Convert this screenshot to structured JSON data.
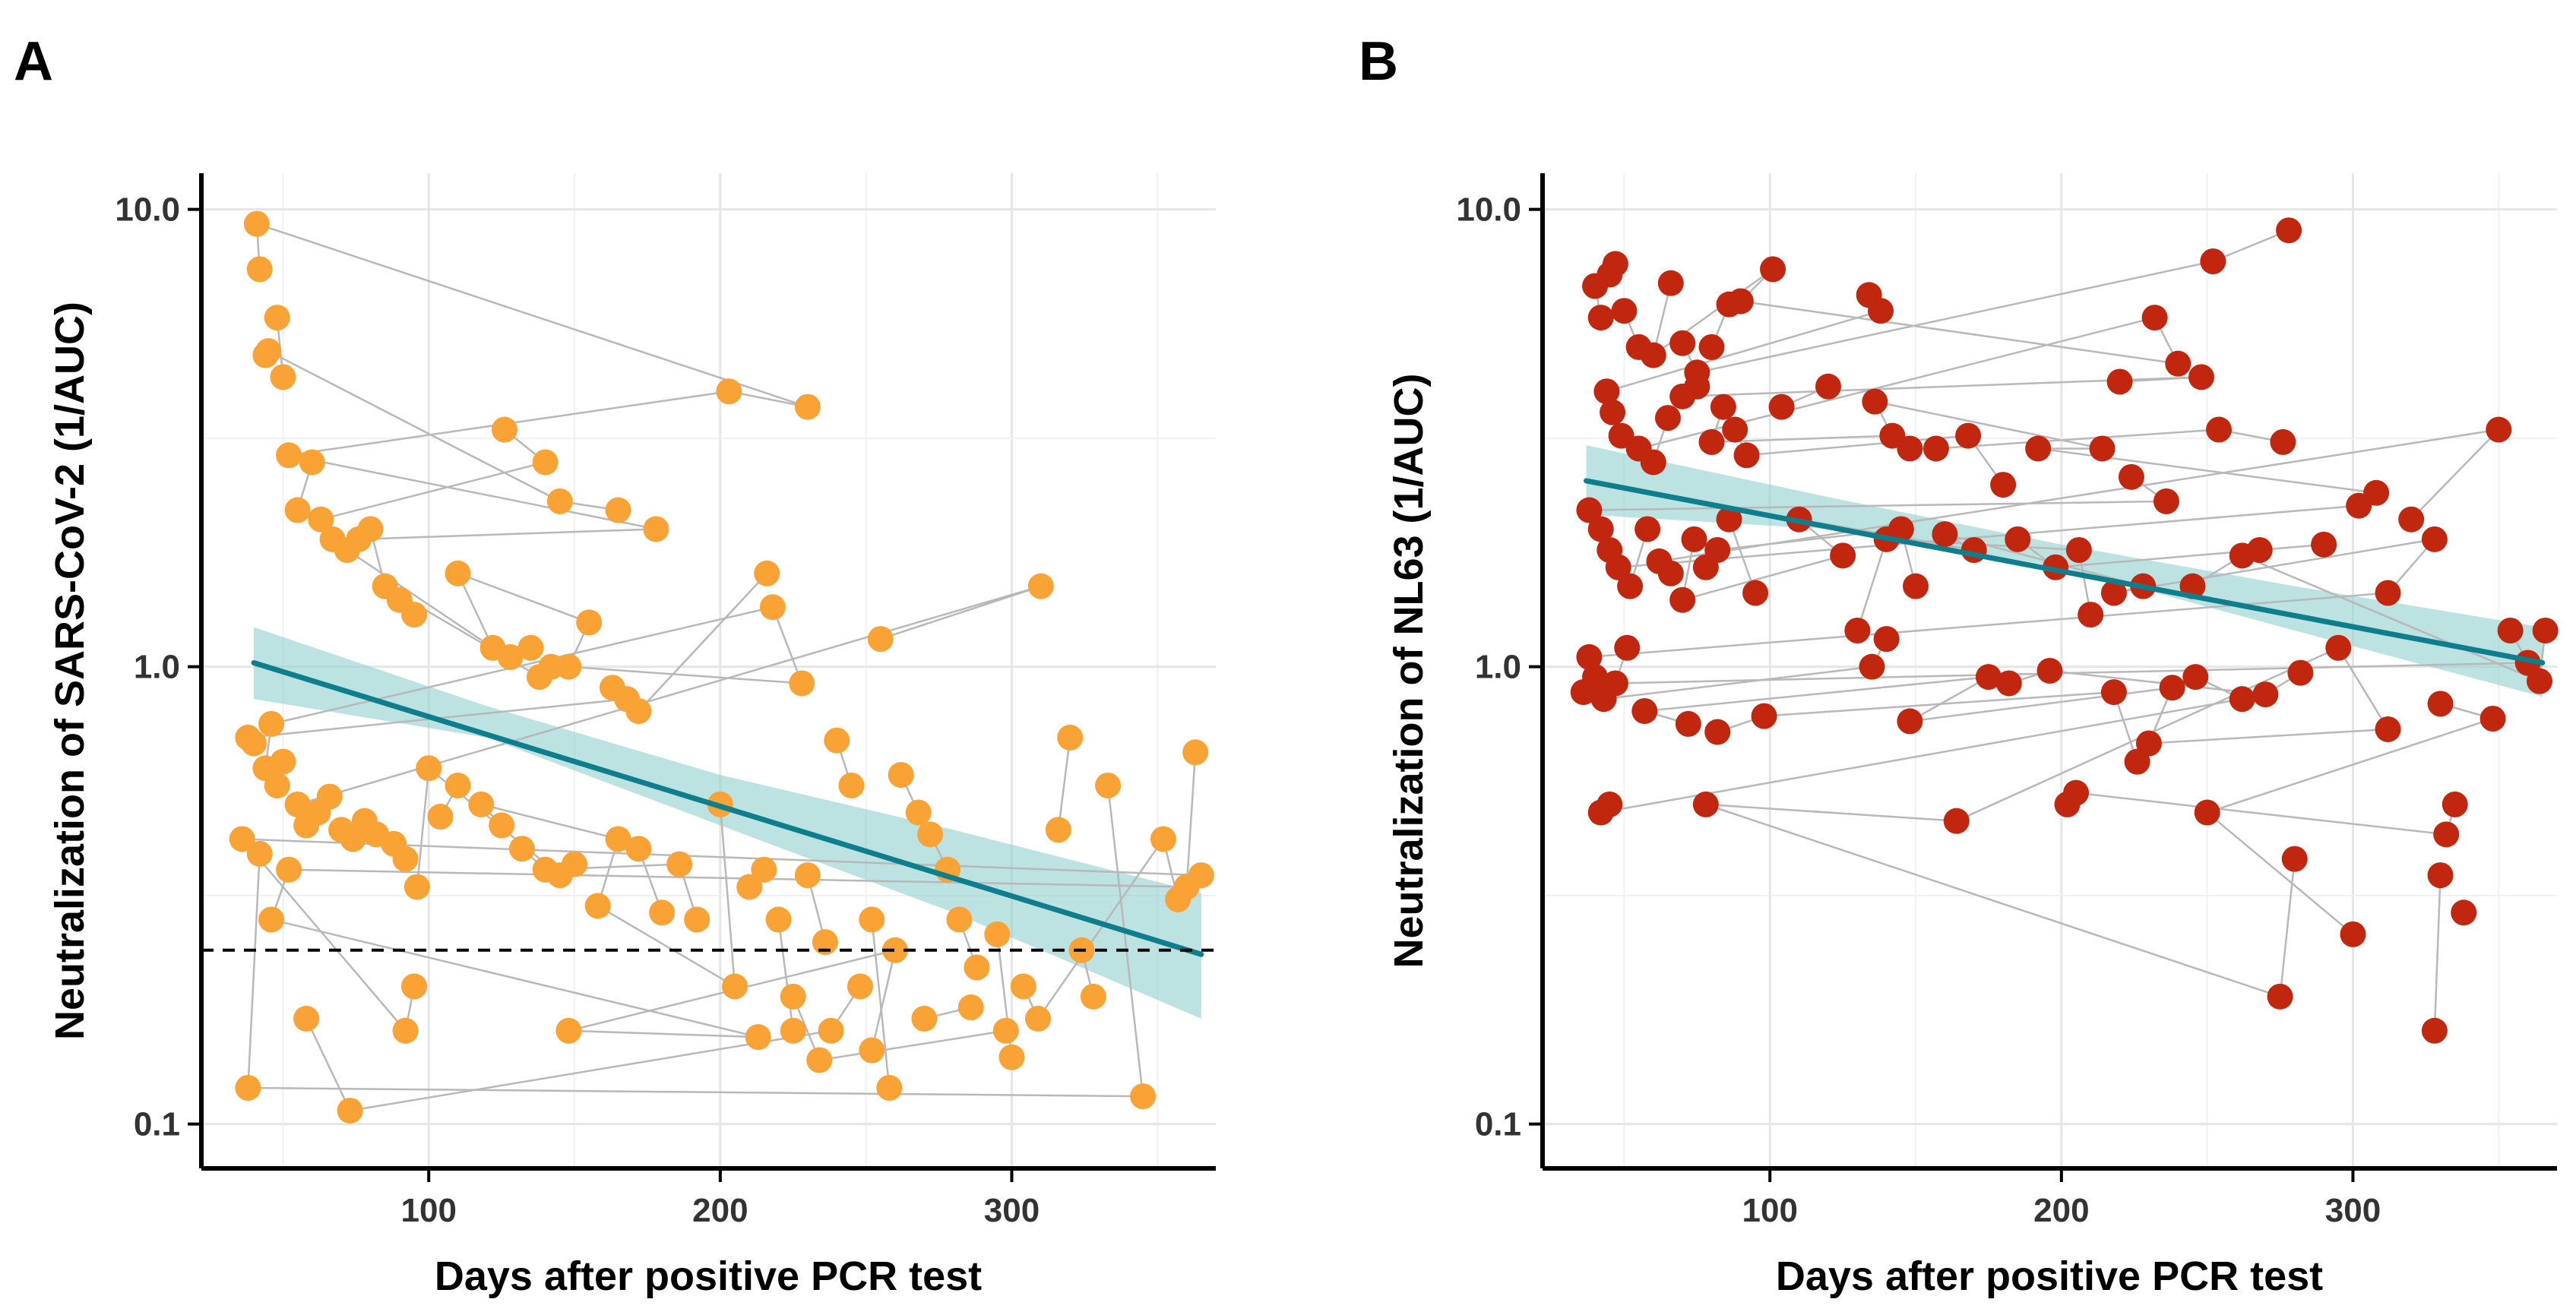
{
  "panels": {
    "a": {
      "letter": "A"
    },
    "b": {
      "letter": "B"
    }
  },
  "colors": {
    "panel_a_points": "#F9A235",
    "panel_b_points": "#C0270E",
    "trend_line": "#0E7E8C",
    "ci_band": "#8FCFCF",
    "connector": "#B8B8B8"
  },
  "chart_data": [
    {
      "id": "A",
      "type": "scatter",
      "title": "",
      "xlabel": "Days after positive PCR test",
      "ylabel": "Neutralization of SARS-CoV-2 (1/AUC)",
      "x_ticks": [
        100,
        200,
        300
      ],
      "x_tick_labels": [
        "100",
        "200",
        "300"
      ],
      "y_ticks": [
        0.1,
        1.0,
        10.0
      ],
      "y_tick_labels": [
        "0.1",
        "1.0",
        "10.0"
      ],
      "y_scale": "log10",
      "xlim": [
        22,
        370
      ],
      "ylim": [
        0.08,
        12
      ],
      "threshold_line": 0.24,
      "trend": {
        "x": [
          40,
          365
        ],
        "y": [
          1.02,
          0.235
        ]
      },
      "ci_upper": [
        [
          40,
          1.22
        ],
        [
          120,
          0.82
        ],
        [
          200,
          0.58
        ],
        [
          280,
          0.44
        ],
        [
          365,
          0.32
        ]
      ],
      "ci_lower": [
        [
          40,
          0.85
        ],
        [
          120,
          0.7
        ],
        [
          200,
          0.45
        ],
        [
          280,
          0.29
        ],
        [
          365,
          0.17
        ]
      ],
      "points": [
        [
          41,
          9.3
        ],
        [
          42,
          7.4
        ],
        [
          44,
          4.8
        ],
        [
          45,
          4.9
        ],
        [
          48,
          5.8
        ],
        [
          50,
          4.3
        ],
        [
          203,
          4.0
        ],
        [
          230,
          3.7
        ],
        [
          126,
          3.3
        ],
        [
          140,
          2.8
        ],
        [
          145,
          2.3
        ],
        [
          165,
          2.2
        ],
        [
          178,
          2.0
        ],
        [
          52,
          2.9
        ],
        [
          55,
          2.2
        ],
        [
          60,
          2.8
        ],
        [
          63,
          2.1
        ],
        [
          67,
          1.9
        ],
        [
          72,
          1.8
        ],
        [
          76,
          1.9
        ],
        [
          80,
          2.0
        ],
        [
          85,
          1.5
        ],
        [
          90,
          1.4
        ],
        [
          95,
          1.3
        ],
        [
          110,
          1.6
        ],
        [
          122,
          1.1
        ],
        [
          128,
          1.05
        ],
        [
          135,
          1.1
        ],
        [
          138,
          0.95
        ],
        [
          142,
          1.0
        ],
        [
          148,
          1.0
        ],
        [
          155,
          1.25
        ],
        [
          163,
          0.9
        ],
        [
          168,
          0.85
        ],
        [
          172,
          0.8
        ],
        [
          216,
          1.6
        ],
        [
          218,
          1.35
        ],
        [
          228,
          0.92
        ],
        [
          255,
          1.15
        ],
        [
          310,
          1.5
        ],
        [
          38,
          0.7
        ],
        [
          40,
          0.68
        ],
        [
          44,
          0.6
        ],
        [
          46,
          0.75
        ],
        [
          48,
          0.55
        ],
        [
          50,
          0.62
        ],
        [
          55,
          0.5
        ],
        [
          58,
          0.45
        ],
        [
          62,
          0.48
        ],
        [
          66,
          0.52
        ],
        [
          70,
          0.44
        ],
        [
          74,
          0.42
        ],
        [
          78,
          0.46
        ],
        [
          82,
          0.43
        ],
        [
          88,
          0.41
        ],
        [
          92,
          0.38
        ],
        [
          96,
          0.33
        ],
        [
          100,
          0.6
        ],
        [
          104,
          0.47
        ],
        [
          110,
          0.55
        ],
        [
          118,
          0.5
        ],
        [
          125,
          0.45
        ],
        [
          132,
          0.4
        ],
        [
          140,
          0.36
        ],
        [
          145,
          0.35
        ],
        [
          150,
          0.37
        ],
        [
          158,
          0.3
        ],
        [
          165,
          0.42
        ],
        [
          172,
          0.4
        ],
        [
          180,
          0.29
        ],
        [
          186,
          0.37
        ],
        [
          192,
          0.28
        ],
        [
          200,
          0.5
        ],
        [
          205,
          0.2
        ],
        [
          210,
          0.33
        ],
        [
          215,
          0.36
        ],
        [
          220,
          0.28
        ],
        [
          225,
          0.16
        ],
        [
          230,
          0.35
        ],
        [
          236,
          0.25
        ],
        [
          240,
          0.69
        ],
        [
          245,
          0.55
        ],
        [
          252,
          0.28
        ],
        [
          258,
          0.12
        ],
        [
          262,
          0.58
        ],
        [
          268,
          0.48
        ],
        [
          272,
          0.43
        ],
        [
          278,
          0.36
        ],
        [
          282,
          0.28
        ],
        [
          288,
          0.22
        ],
        [
          295,
          0.26
        ],
        [
          300,
          0.14
        ],
        [
          304,
          0.2
        ],
        [
          309,
          0.17
        ],
        [
          316,
          0.44
        ],
        [
          320,
          0.7
        ],
        [
          324,
          0.24
        ],
        [
          328,
          0.19
        ],
        [
          333,
          0.55
        ],
        [
          345,
          0.115
        ],
        [
          352,
          0.42
        ],
        [
          357,
          0.31
        ],
        [
          360,
          0.33
        ],
        [
          363,
          0.65
        ],
        [
          365,
          0.35
        ],
        [
          36,
          0.42
        ],
        [
          38,
          0.12
        ],
        [
          42,
          0.39
        ],
        [
          46,
          0.28
        ],
        [
          52,
          0.36
        ],
        [
          58,
          0.17
        ],
        [
          73,
          0.107
        ],
        [
          92,
          0.16
        ],
        [
          95,
          0.2
        ],
        [
          148,
          0.16
        ],
        [
          213,
          0.155
        ],
        [
          225,
          0.19
        ],
        [
          234,
          0.138
        ],
        [
          238,
          0.16
        ],
        [
          248,
          0.2
        ],
        [
          252,
          0.145
        ],
        [
          260,
          0.24
        ],
        [
          270,
          0.17
        ],
        [
          286,
          0.18
        ],
        [
          298,
          0.16
        ]
      ]
    },
    {
      "id": "B",
      "type": "scatter",
      "title": "",
      "xlabel": "Days after positive PCR test",
      "ylabel": "Neutralization of NL63 (1/AUC)",
      "x_ticks": [
        100,
        200,
        300
      ],
      "x_tick_labels": [
        "100",
        "200",
        "300"
      ],
      "y_ticks": [
        0.1,
        1.0,
        10.0
      ],
      "y_tick_labels": [
        "0.1",
        "1.0",
        "10.0"
      ],
      "y_scale": "log10",
      "xlim": [
        22,
        370
      ],
      "ylim": [
        0.08,
        12
      ],
      "trend": {
        "x": [
          37,
          365
        ],
        "y": [
          2.55,
          1.02
        ]
      },
      "ci_upper": [
        [
          37,
          3.05
        ],
        [
          120,
          2.35
        ],
        [
          200,
          1.85
        ],
        [
          280,
          1.5
        ],
        [
          365,
          1.22
        ]
      ],
      "ci_lower": [
        [
          37,
          2.15
        ],
        [
          120,
          2.0
        ],
        [
          200,
          1.65
        ],
        [
          280,
          1.2
        ],
        [
          365,
          0.86
        ]
      ],
      "points": [
        [
          40,
          6.8
        ],
        [
          42,
          5.8
        ],
        [
          45,
          7.2
        ],
        [
          47,
          7.6
        ],
        [
          50,
          6.0
        ],
        [
          55,
          5.0
        ],
        [
          60,
          4.8
        ],
        [
          66,
          6.9
        ],
        [
          70,
          5.1
        ],
        [
          75,
          4.4
        ],
        [
          80,
          5.0
        ],
        [
          86,
          6.2
        ],
        [
          90,
          6.3
        ],
        [
          101,
          7.4
        ],
        [
          134,
          6.5
        ],
        [
          138,
          6.0
        ],
        [
          252,
          7.7
        ],
        [
          278,
          9.0
        ],
        [
          232,
          5.8
        ],
        [
          240,
          4.6
        ],
        [
          220,
          4.2
        ],
        [
          248,
          4.3
        ],
        [
          44,
          4.0
        ],
        [
          46,
          3.6
        ],
        [
          49,
          3.2
        ],
        [
          55,
          3.0
        ],
        [
          60,
          2.8
        ],
        [
          65,
          3.5
        ],
        [
          70,
          3.9
        ],
        [
          75,
          4.1
        ],
        [
          80,
          3.1
        ],
        [
          84,
          3.7
        ],
        [
          88,
          3.3
        ],
        [
          92,
          2.9
        ],
        [
          104,
          3.7
        ],
        [
          120,
          4.1
        ],
        [
          136,
          3.8
        ],
        [
          142,
          3.2
        ],
        [
          148,
          3.0
        ],
        [
          157,
          3.0
        ],
        [
          168,
          3.2
        ],
        [
          180,
          2.5
        ],
        [
          192,
          3.0
        ],
        [
          214,
          3.0
        ],
        [
          224,
          2.6
        ],
        [
          236,
          2.3
        ],
        [
          254,
          3.3
        ],
        [
          276,
          3.1
        ],
        [
          302,
          2.25
        ],
        [
          308,
          2.4
        ],
        [
          320,
          2.1
        ],
        [
          350,
          3.3
        ],
        [
          38,
          2.2
        ],
        [
          42,
          2.0
        ],
        [
          45,
          1.8
        ],
        [
          48,
          1.65
        ],
        [
          52,
          1.5
        ],
        [
          58,
          2.0
        ],
        [
          62,
          1.7
        ],
        [
          66,
          1.6
        ],
        [
          70,
          1.4
        ],
        [
          74,
          1.9
        ],
        [
          78,
          1.65
        ],
        [
          82,
          1.8
        ],
        [
          86,
          2.1
        ],
        [
          95,
          1.45
        ],
        [
          110,
          2.1
        ],
        [
          125,
          1.75
        ],
        [
          130,
          1.2
        ],
        [
          140,
          1.9
        ],
        [
          145,
          2.0
        ],
        [
          150,
          1.5
        ],
        [
          160,
          1.95
        ],
        [
          170,
          1.8
        ],
        [
          185,
          1.9
        ],
        [
          198,
          1.65
        ],
        [
          206,
          1.8
        ],
        [
          210,
          1.3
        ],
        [
          218,
          1.45
        ],
        [
          228,
          1.5
        ],
        [
          245,
          1.5
        ],
        [
          262,
          1.75
        ],
        [
          268,
          1.8
        ],
        [
          290,
          1.85
        ],
        [
          312,
          1.45
        ],
        [
          328,
          1.9
        ],
        [
          354,
          1.2
        ],
        [
          360,
          1.02
        ],
        [
          364,
          0.93
        ],
        [
          366,
          1.2
        ],
        [
          36,
          0.88
        ],
        [
          38,
          1.05
        ],
        [
          40,
          0.95
        ],
        [
          43,
          0.85
        ],
        [
          47,
          0.92
        ],
        [
          51,
          1.1
        ],
        [
          57,
          0.8
        ],
        [
          72,
          0.75
        ],
        [
          82,
          0.72
        ],
        [
          98,
          0.78
        ],
        [
          135,
          1.0
        ],
        [
          140,
          1.15
        ],
        [
          148,
          0.76
        ],
        [
          175,
          0.95
        ],
        [
          182,
          0.92
        ],
        [
          196,
          0.98
        ],
        [
          218,
          0.88
        ],
        [
          226,
          0.62
        ],
        [
          230,
          0.68
        ],
        [
          238,
          0.9
        ],
        [
          246,
          0.95
        ],
        [
          262,
          0.85
        ],
        [
          270,
          0.87
        ],
        [
          282,
          0.97
        ],
        [
          295,
          1.1
        ],
        [
          312,
          0.73
        ],
        [
          330,
          0.83
        ],
        [
          348,
          0.77
        ],
        [
          42,
          0.48
        ],
        [
          45,
          0.5
        ],
        [
          78,
          0.5
        ],
        [
          164,
          0.46
        ],
        [
          202,
          0.5
        ],
        [
          205,
          0.53
        ],
        [
          250,
          0.48
        ],
        [
          300,
          0.26
        ],
        [
          280,
          0.38
        ],
        [
          275,
          0.19
        ],
        [
          328,
          0.16
        ],
        [
          330,
          0.35
        ],
        [
          332,
          0.43
        ],
        [
          335,
          0.5
        ],
        [
          338,
          0.29
        ]
      ]
    }
  ]
}
